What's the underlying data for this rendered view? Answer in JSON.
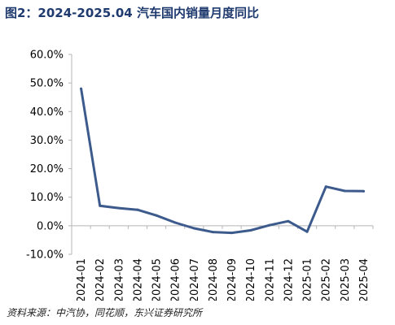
{
  "header": {
    "title": "图2：2024-2025.04 汽车国内销量月度同比"
  },
  "footer": {
    "source": "资料来源：中汽协，同花顺，东兴证券研究所"
  },
  "chart_data": {
    "type": "line",
    "title": "图2：2024-2025.04 汽车国内销量月度同比",
    "xlabel": "",
    "ylabel": "",
    "x": [
      "2024-01",
      "2024-02",
      "2024-03",
      "2024-04",
      "2024-05",
      "2024-06",
      "2024-07",
      "2024-08",
      "2024-09",
      "2024-10",
      "2024-11",
      "2024-12",
      "2025-01",
      "2025-02",
      "2025-03",
      "2025-04"
    ],
    "series": [
      {
        "values": [
          48.0,
          7.0,
          6.2,
          5.6,
          3.6,
          1.1,
          -0.9,
          -2.2,
          -2.5,
          -1.6,
          0.2,
          1.6,
          -2.1,
          13.7,
          12.2,
          12.1
        ]
      }
    ],
    "ylim": [
      -10,
      60
    ],
    "yticks": [
      -10,
      0,
      10,
      20,
      30,
      40,
      50,
      60
    ],
    "ytick_labels": [
      "-10.0%",
      "0.0%",
      "10.0%",
      "20.0%",
      "30.0%",
      "40.0%",
      "50.0%",
      "60.0%"
    ],
    "color": "#3c5a8c",
    "grid": false,
    "legend": "none"
  }
}
